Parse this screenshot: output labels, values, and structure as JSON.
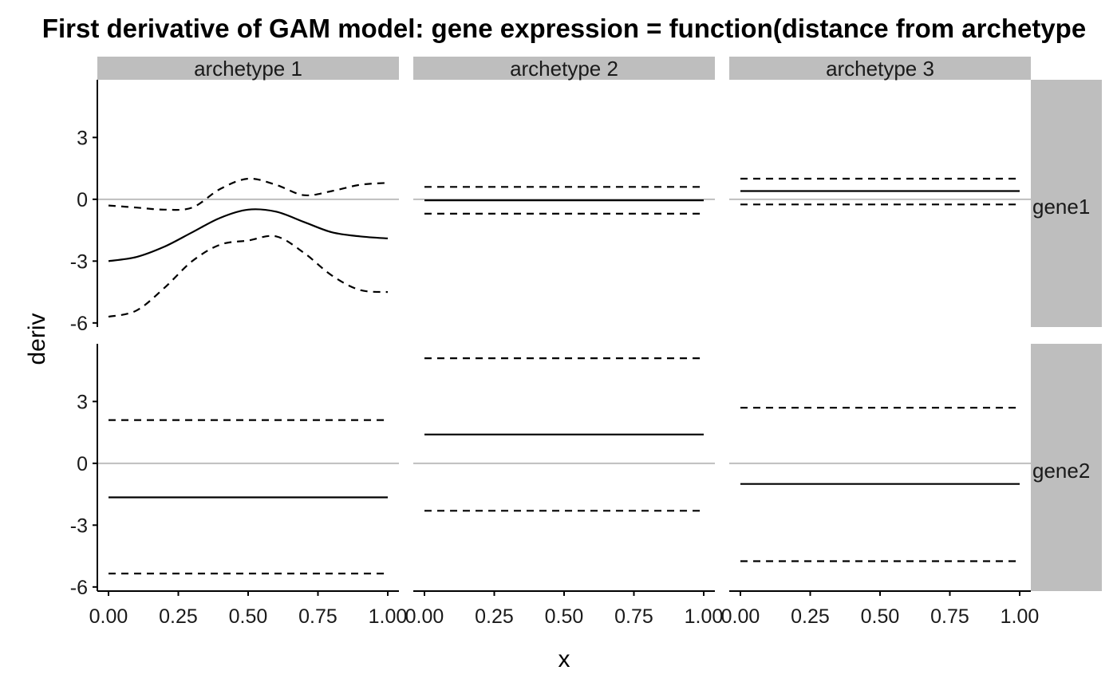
{
  "chart_data": {
    "type": "line",
    "title": "First derivative of GAM model: gene expression = function(distance from archetype",
    "xlabel": "x",
    "ylabel": "deriv",
    "xlim": [
      -0.04,
      1.04
    ],
    "ylim": [
      -6.2,
      5.8
    ],
    "x_ticks": [
      0,
      0.25,
      0.5,
      0.75,
      1
    ],
    "x_tick_labels": [
      "0.00",
      "0.25",
      "0.50",
      "0.75",
      "1.00"
    ],
    "y_ticks": [
      -6,
      -3,
      0,
      3
    ],
    "y_tick_labels": [
      "-6",
      "-3",
      "0",
      "3"
    ],
    "hline": 0,
    "columns": [
      "archetype  1",
      "archetype  2",
      "archetype  3"
    ],
    "rows": [
      "gene1",
      "gene2"
    ],
    "grid": false,
    "legend": "none",
    "colors": {
      "line": "#000000",
      "zero_line": "#bebebe",
      "strip": "#bebebe",
      "axis": "#000000"
    },
    "series_styles": {
      "deriv": "solid",
      "lower": "dashed",
      "upper": "dashed"
    },
    "x": [
      0,
      0.1,
      0.2,
      0.3,
      0.4,
      0.5,
      0.6,
      0.7,
      0.8,
      0.9,
      1.0
    ],
    "panels": [
      {
        "row": "gene1",
        "column": "archetype  1",
        "deriv": [
          -3.0,
          -2.8,
          -2.3,
          -1.6,
          -0.9,
          -0.5,
          -0.6,
          -1.1,
          -1.6,
          -1.8,
          -1.9
        ],
        "lower": [
          -5.7,
          -5.4,
          -4.3,
          -3.0,
          -2.2,
          -2.0,
          -1.8,
          -2.6,
          -3.7,
          -4.4,
          -4.5
        ],
        "upper": [
          -0.3,
          -0.4,
          -0.5,
          -0.4,
          0.5,
          1.0,
          0.7,
          0.2,
          0.4,
          0.7,
          0.8
        ]
      },
      {
        "row": "gene1",
        "column": "archetype  2",
        "deriv": [
          -0.05,
          -0.05,
          -0.05,
          -0.05,
          -0.05,
          -0.05,
          -0.05,
          -0.05,
          -0.05,
          -0.05,
          -0.05
        ],
        "lower": [
          -0.7,
          -0.7,
          -0.7,
          -0.7,
          -0.7,
          -0.7,
          -0.7,
          -0.7,
          -0.7,
          -0.7,
          -0.7
        ],
        "upper": [
          0.6,
          0.6,
          0.6,
          0.6,
          0.6,
          0.6,
          0.6,
          0.6,
          0.6,
          0.6,
          0.6
        ]
      },
      {
        "row": "gene1",
        "column": "archetype  3",
        "deriv": [
          0.4,
          0.4,
          0.4,
          0.4,
          0.4,
          0.4,
          0.4,
          0.4,
          0.4,
          0.4,
          0.4
        ],
        "lower": [
          -0.25,
          -0.25,
          -0.25,
          -0.25,
          -0.25,
          -0.25,
          -0.25,
          -0.25,
          -0.25,
          -0.25,
          -0.25
        ],
        "upper": [
          1.0,
          1.0,
          1.0,
          1.0,
          1.0,
          1.0,
          1.0,
          1.0,
          1.0,
          1.0,
          1.0
        ]
      },
      {
        "row": "gene2",
        "column": "archetype  1",
        "deriv": [
          -1.65,
          -1.65,
          -1.65,
          -1.65,
          -1.65,
          -1.65,
          -1.65,
          -1.65,
          -1.65,
          -1.65,
          -1.65
        ],
        "lower": [
          -5.35,
          -5.35,
          -5.35,
          -5.35,
          -5.35,
          -5.35,
          -5.35,
          -5.35,
          -5.35,
          -5.35,
          -5.35
        ],
        "upper": [
          2.1,
          2.1,
          2.1,
          2.1,
          2.1,
          2.1,
          2.1,
          2.1,
          2.1,
          2.1,
          2.1
        ]
      },
      {
        "row": "gene2",
        "column": "archetype  2",
        "deriv": [
          1.4,
          1.4,
          1.4,
          1.4,
          1.4,
          1.4,
          1.4,
          1.4,
          1.4,
          1.4,
          1.4
        ],
        "lower": [
          -2.3,
          -2.3,
          -2.3,
          -2.3,
          -2.3,
          -2.3,
          -2.3,
          -2.3,
          -2.3,
          -2.3,
          -2.3
        ],
        "upper": [
          5.1,
          5.1,
          5.1,
          5.1,
          5.1,
          5.1,
          5.1,
          5.1,
          5.1,
          5.1,
          5.1
        ]
      },
      {
        "row": "gene2",
        "column": "archetype  3",
        "deriv": [
          -1.0,
          -1.0,
          -1.0,
          -1.0,
          -1.0,
          -1.0,
          -1.0,
          -1.0,
          -1.0,
          -1.0,
          -1.0
        ],
        "lower": [
          -4.75,
          -4.75,
          -4.75,
          -4.75,
          -4.75,
          -4.75,
          -4.75,
          -4.75,
          -4.75,
          -4.75,
          -4.75
        ],
        "upper": [
          2.7,
          2.7,
          2.7,
          2.7,
          2.7,
          2.7,
          2.7,
          2.7,
          2.7,
          2.7,
          2.7
        ]
      }
    ]
  }
}
